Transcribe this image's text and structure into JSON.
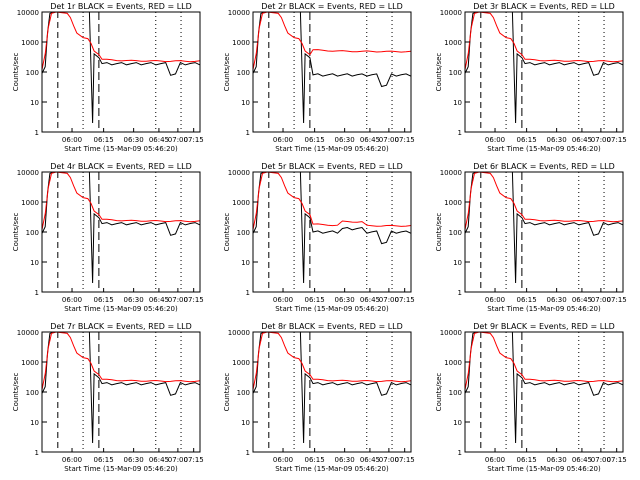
{
  "chart_data": [
    {
      "type": "line",
      "title": "Det 1r BLACK = Events, RED = LLD",
      "variant": 1
    },
    {
      "type": "line",
      "title": "Det 2r BLACK = Events, RED = LLD",
      "variant": 2
    },
    {
      "type": "line",
      "title": "Det 3r BLACK = Events, RED = LLD",
      "variant": 3
    },
    {
      "type": "line",
      "title": "Det 4r BLACK = Events, RED = LLD",
      "variant": 4
    },
    {
      "type": "line",
      "title": "Det 5r BLACK = Events, RED = LLD",
      "variant": 5
    },
    {
      "type": "line",
      "title": "Det 6r BLACK = Events, RED = LLD",
      "variant": 6
    },
    {
      "type": "line",
      "title": "Det 7r BLACK = Events, RED = LLD",
      "variant": 7
    },
    {
      "type": "line",
      "title": "Det 8r BLACK = Events, RED = LLD",
      "variant": 8
    },
    {
      "type": "line",
      "title": "Det 9r BLACK = Events, RED = LLD",
      "variant": 9
    }
  ],
  "shared": {
    "xlabel": "Start Time (15-Mar-09 05:46:20)",
    "ylabel": "Counts/sec",
    "xticks": [
      "06:00",
      "06:15",
      "06:30",
      "06:45",
      "07:00",
      "07:15"
    ],
    "yticks": [
      "1",
      "10",
      "100",
      "1000",
      "10000"
    ],
    "ylim": [
      1,
      10000
    ],
    "yscale": "log",
    "grid": false,
    "colors": {
      "events": "#000000",
      "lld": "#ff0000"
    }
  }
}
